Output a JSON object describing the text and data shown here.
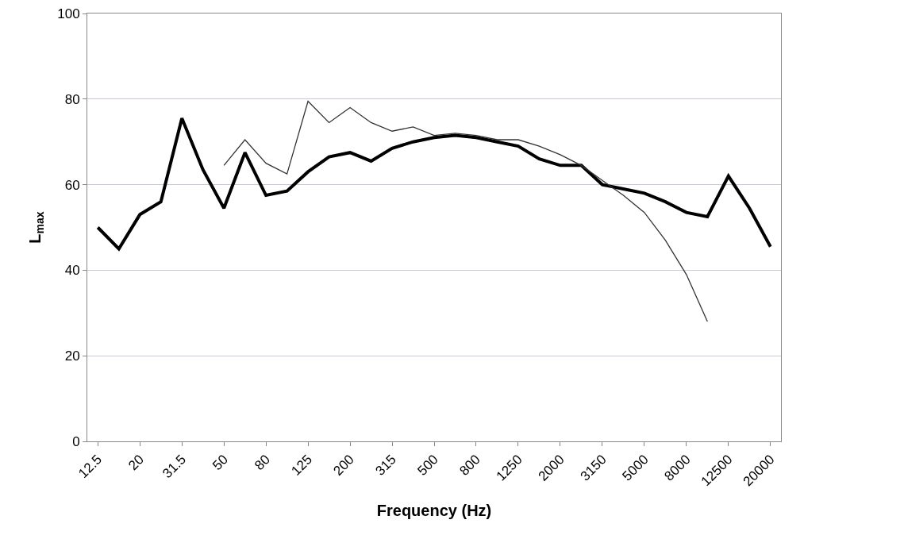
{
  "chart_data": {
    "type": "line",
    "xlabel": "Frequency (Hz)",
    "ylabel": "L$_{max}$",
    "categories": [
      "12.5",
      null,
      "20",
      null,
      "31.5",
      null,
      "50",
      null,
      "80",
      null,
      "125",
      null,
      "200",
      null,
      "315",
      null,
      "500",
      null,
      "800",
      null,
      "1250",
      null,
      "2000",
      null,
      "3150",
      null,
      "5000",
      null,
      "8000",
      null,
      "12500",
      null,
      "20000"
    ],
    "series": [
      {
        "color": "#000000",
        "values": [
          50,
          45,
          53,
          56,
          75.5,
          63.5,
          54.5,
          67.5,
          57.5,
          58.5,
          63,
          66.5,
          67.5,
          65.5,
          68.5,
          70,
          71,
          71.5,
          71,
          70,
          69,
          66,
          64.5,
          64.5,
          60,
          59,
          58,
          56,
          53.5,
          52.5,
          62,
          54.5,
          45.5
        ]
      },
      {
        "color": "#333333",
        "values": [
          null,
          null,
          null,
          null,
          null,
          null,
          64.5,
          70.5,
          65,
          62.5,
          79.5,
          74.5,
          78,
          74.5,
          72.5,
          73.5,
          71.5,
          72,
          71.5,
          70.5,
          70.5,
          69,
          67,
          64.5,
          61,
          57.5,
          53.5,
          47,
          39,
          28,
          null,
          null,
          null
        ]
      }
    ],
    "ylim": [
      0,
      100
    ],
    "yticks": [
      0,
      20,
      40,
      60,
      80,
      100
    ],
    "grid": "y"
  }
}
